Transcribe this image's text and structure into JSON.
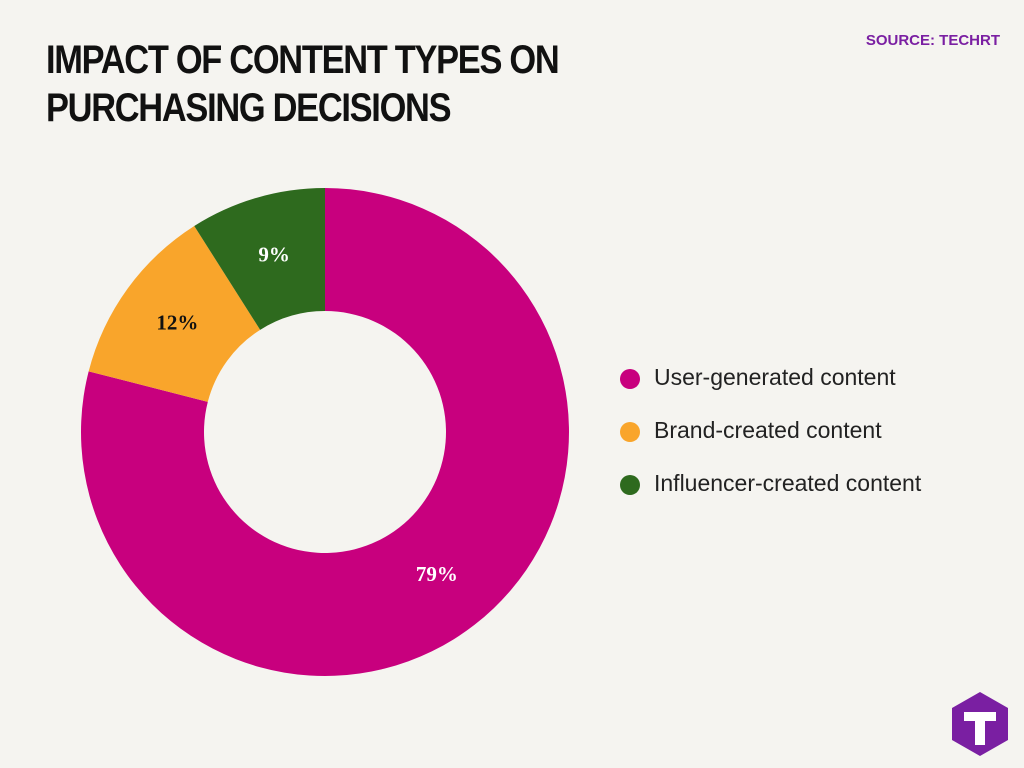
{
  "chart_data": {
    "type": "pie",
    "title": "IMPACT OF CONTENT TYPES ON PURCHASING DECISIONS",
    "source": "SOURCE: TECHRT",
    "categories": [
      "User-generated content",
      "Brand-created content",
      "Influencer-created content"
    ],
    "values": [
      79,
      12,
      9
    ],
    "value_labels": [
      "79%",
      "12%",
      "9%"
    ],
    "colors": [
      "#c8007e",
      "#f9a52b",
      "#2e6a1e"
    ],
    "donut": true
  }
}
